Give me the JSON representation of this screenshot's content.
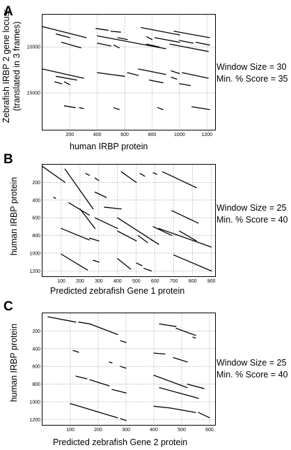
{
  "figure": {
    "panels": [
      {
        "letter": "A",
        "ylabel_lines": [
          "Zebrafish IRBP 2 gene locus:",
          "(translated in 3 frames)"
        ],
        "xlabel": "human IRBP protein",
        "params": [
          "Window Size = 30",
          "Min. % Score = 35"
        ]
      },
      {
        "letter": "B",
        "ylabel_lines": [
          "human IRBP protein"
        ],
        "xlabel": "Predicted zebrafish Gene 1 protein",
        "params": [
          "Window Size = 25",
          "Min. % Score = 40"
        ]
      },
      {
        "letter": "C",
        "ylabel_lines": [
          "human IRBP protein"
        ],
        "xlabel": "Predicted zebrafish Gene 2 protein",
        "params": [
          "Window Size = 25",
          "Min. % Score = 40"
        ]
      }
    ]
  },
  "chart_data": [
    {
      "type": "scatter",
      "title": "",
      "xlabel": "human IRBP protein",
      "ylabel": "Zebrafish IRBP 2 gene locus: (translated in 3 frames)",
      "xlim": [
        0,
        1260
      ],
      "ylim": [
        6500,
        19000
      ],
      "y_inverted": true,
      "xticks": [
        200,
        400,
        600,
        800,
        1000,
        1200
      ],
      "yticks": [
        10000,
        15000
      ],
      "grid": true,
      "series": [
        {
          "segments": [
            [
              0,
              7800,
              320,
              9000
            ],
            [
              100,
              8600,
              200,
              9000
            ],
            [
              140,
              9500,
              280,
              10100
            ],
            [
              390,
              8000,
              480,
              8200
            ],
            [
              500,
              8300,
              570,
              8400
            ],
            [
              400,
              8800,
              900,
              10200
            ],
            [
              550,
              9000,
              620,
              9200
            ],
            [
              720,
              7900,
              1000,
              8700
            ],
            [
              960,
              8300,
              1220,
              9000
            ],
            [
              760,
              8900,
              800,
              9200
            ],
            [
              820,
              9000,
              1000,
              9500
            ],
            [
              1000,
              9300,
              1100,
              9600
            ],
            [
              1120,
              9500,
              1220,
              9800
            ],
            [
              930,
              9700,
              1210,
              10500
            ],
            [
              400,
              9600,
              500,
              9900
            ],
            [
              520,
              9800,
              560,
              10100
            ],
            [
              760,
              9700,
              850,
              10000
            ],
            [
              0,
              12400,
              300,
              13400
            ],
            [
              100,
              13200,
              250,
              13600
            ],
            [
              90,
              13800,
              140,
              14000
            ],
            [
              160,
              13800,
              200,
              14100
            ],
            [
              400,
              12800,
              600,
              13200
            ],
            [
              620,
              12800,
              700,
              13100
            ],
            [
              700,
              12400,
              900,
              13000
            ],
            [
              940,
              12600,
              1000,
              12900
            ],
            [
              1020,
              12800,
              1210,
              13400
            ],
            [
              780,
              13600,
              880,
              13900
            ],
            [
              940,
              13300,
              980,
              13500
            ],
            [
              1000,
              14000,
              1080,
              14200
            ],
            [
              160,
              16400,
              240,
              16600
            ],
            [
              270,
              16600,
              300,
              16700
            ],
            [
              520,
              16600,
              560,
              16800
            ],
            [
              840,
              16600,
              880,
              16800
            ],
            [
              1090,
              16500,
              1220,
              16800
            ]
          ]
        }
      ]
    },
    {
      "type": "scatter",
      "title": "",
      "xlabel": "Predicted zebrafish Gene 1 protein",
      "ylabel": "human IRBP protein",
      "xlim": [
        0,
        920
      ],
      "ylim": [
        0,
        1260
      ],
      "y_inverted": true,
      "xticks": [
        100,
        200,
        300,
        400,
        500,
        600,
        700,
        800,
        900
      ],
      "yticks": [
        200,
        400,
        600,
        800,
        1000,
        1200
      ],
      "grid": true,
      "series": [
        {
          "segments": [
            [
              0,
              20,
              120,
              200
            ],
            [
              120,
              50,
              270,
              500
            ],
            [
              280,
              310,
              340,
              370
            ],
            [
              330,
              480,
              420,
              500
            ],
            [
              420,
              80,
              500,
              200
            ],
            [
              520,
              100,
              545,
              130
            ],
            [
              640,
              80,
              820,
              260
            ],
            [
              690,
              520,
              830,
              660
            ],
            [
              590,
              90,
              610,
              110
            ],
            [
              200,
              500,
              280,
              720
            ],
            [
              280,
              600,
              400,
              720
            ],
            [
              400,
              600,
              620,
              900
            ],
            [
              620,
              720,
              900,
              930
            ],
            [
              230,
              100,
              250,
              120
            ],
            [
              140,
              430,
              250,
              570
            ],
            [
              100,
              720,
              250,
              850
            ],
            [
              250,
              830,
              300,
              860
            ],
            [
              400,
              750,
              500,
              860
            ],
            [
              510,
              800,
              560,
              880
            ],
            [
              590,
              700,
              690,
              800
            ],
            [
              730,
              750,
              820,
              860
            ],
            [
              100,
              1010,
              240,
              1190
            ],
            [
              270,
              1080,
              300,
              1100
            ],
            [
              400,
              1060,
              470,
              1180
            ],
            [
              500,
              1110,
              530,
              1140
            ],
            [
              540,
              1170,
              580,
              1200
            ],
            [
              700,
              1020,
              900,
              1200
            ],
            [
              60,
              370,
              70,
              380
            ],
            [
              580,
              850,
              590,
              860
            ],
            [
              280,
              150,
              300,
              180
            ]
          ]
        }
      ]
    },
    {
      "type": "scatter",
      "title": "",
      "xlabel": "Predicted zebrafish Gene 2 protein",
      "ylabel": "human IRBP protein",
      "xlim": [
        0,
        620
      ],
      "ylim": [
        0,
        1260
      ],
      "y_inverted": true,
      "xticks": [
        100,
        200,
        300,
        400,
        500,
        600
      ],
      "yticks": [
        200,
        400,
        600,
        800,
        1000,
        1200
      ],
      "grid": true,
      "series": [
        {
          "segments": [
            [
              20,
              40,
              120,
              100
            ],
            [
              130,
              100,
              170,
              120
            ],
            [
              170,
              120,
              270,
              240
            ],
            [
              280,
              310,
              300,
              330
            ],
            [
              420,
              120,
              480,
              150
            ],
            [
              480,
              170,
              550,
              250
            ],
            [
              400,
              450,
              440,
              460
            ],
            [
              470,
              500,
              520,
              550
            ],
            [
              540,
              270,
              550,
              280
            ],
            [
              110,
              420,
              130,
              440
            ],
            [
              240,
              550,
              250,
              560
            ],
            [
              280,
              600,
              300,
              620
            ],
            [
              120,
              710,
              160,
              740
            ],
            [
              170,
              750,
              240,
              820
            ],
            [
              250,
              860,
              300,
              900
            ],
            [
              400,
              700,
              520,
              840
            ],
            [
              520,
              800,
              580,
              850
            ],
            [
              420,
              840,
              560,
              960
            ],
            [
              100,
              1020,
              270,
              1180
            ],
            [
              280,
              1190,
              300,
              1210
            ],
            [
              400,
              1050,
              460,
              1070
            ],
            [
              460,
              1070,
              550,
              1120
            ],
            [
              560,
              1120,
              600,
              1180
            ]
          ]
        }
      ]
    }
  ]
}
